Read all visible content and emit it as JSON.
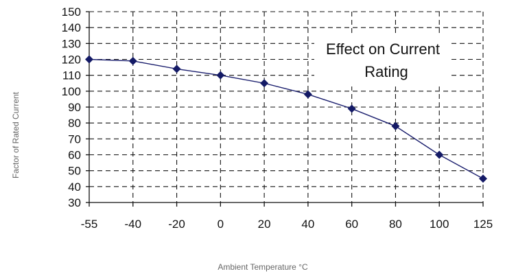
{
  "chart_data": {
    "type": "line",
    "title_lines": [
      "Effect on Current",
      "Rating"
    ],
    "xlabel": "Ambient Temperature °C",
    "ylabel": "Factor of  Rated Current",
    "categories": [
      "-55",
      "-40",
      "-20",
      "0",
      "20",
      "40",
      "60",
      "80",
      "100",
      "125"
    ],
    "series": [
      {
        "values": [
          120,
          119,
          114,
          110,
          105,
          98,
          89,
          78,
          60,
          45
        ]
      }
    ],
    "ylim": [
      30,
      150
    ],
    "yticks": [
      "150",
      "140",
      "130",
      "120",
      "110",
      "100",
      "90",
      "80",
      "70",
      "60",
      "50",
      "40",
      "30"
    ],
    "grid": true,
    "colors": {
      "line": "#1b1f6e",
      "marker": "#141a66"
    }
  }
}
